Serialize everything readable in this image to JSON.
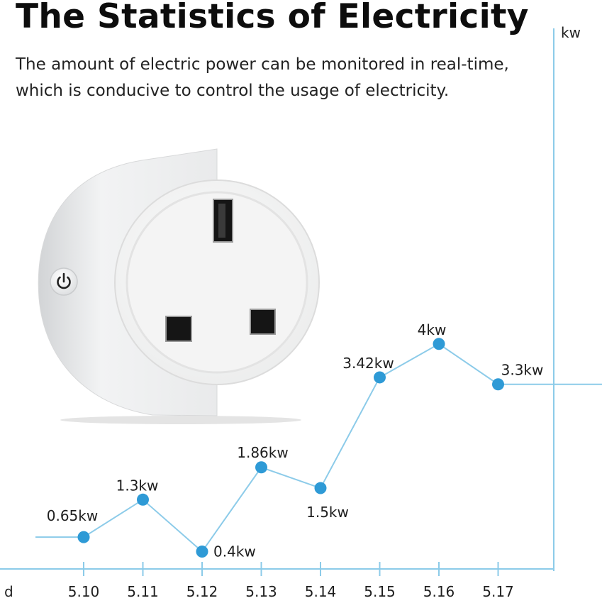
{
  "title": "The Statistics of Electricity",
  "subtitle_lines": [
    "The amount of electric power can be monitored in real-time,",
    "which is conducive to control the usage of electricity."
  ],
  "product": {
    "name": "smart-plug",
    "button_icon": "power-icon"
  },
  "colors": {
    "line": "#8ccbe9",
    "point": "#2e9ad6",
    "axis": "#8ccbe9",
    "text": "#1e1e1e"
  },
  "chart_data": {
    "type": "line",
    "title": "",
    "xlabel": "d",
    "ylabel": "kw",
    "categories": [
      "5.10",
      "5.11",
      "5.12",
      "5.13",
      "5.14",
      "5.15",
      "5.16",
      "5.17"
    ],
    "series": [
      {
        "x": [
          "5.10",
          "5.11",
          "5.12",
          "5.13",
          "5.14",
          "5.15",
          "5.16",
          "5.17"
        ],
        "values": [
          0.65,
          1.3,
          0.4,
          1.86,
          1.5,
          3.42,
          4.0,
          3.3
        ],
        "labels": [
          "0.65kw",
          "1.3kw",
          "0.4kw",
          "1.86kw",
          "1.5kw",
          "3.42kw",
          "4kw",
          "3.3kw"
        ]
      }
    ],
    "grid": false,
    "legend": "none"
  }
}
